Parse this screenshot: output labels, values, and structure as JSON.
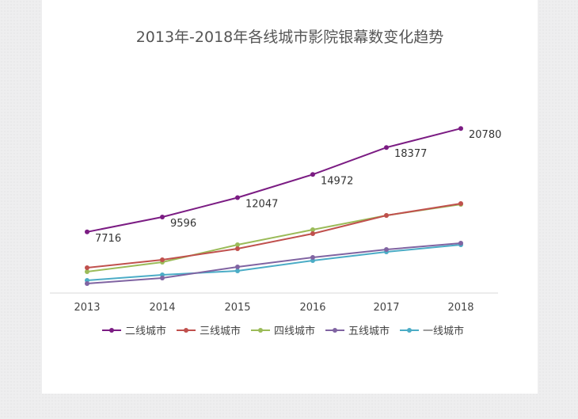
{
  "chart_data": {
    "type": "line",
    "title": "2013年-2018年各线城市影院银幕数变化趋势",
    "categories": [
      "2013",
      "2014",
      "2015",
      "2016",
      "2017",
      "2018"
    ],
    "ylim": [
      0,
      22000
    ],
    "series": [
      {
        "name": "二线城市",
        "color": "#7b1c83",
        "values": [
          7716,
          9596,
          12047,
          14972,
          18377,
          20780
        ],
        "labels": [
          "7716",
          "9596",
          "12047",
          "14972",
          "18377",
          "20780"
        ]
      },
      {
        "name": "三线城市",
        "color": "#c0504d",
        "values": [
          3200,
          4200,
          5600,
          7500,
          9800,
          11300
        ]
      },
      {
        "name": "四线城市",
        "color": "#9bbb59",
        "values": [
          2700,
          3900,
          6100,
          8000,
          9800,
          11200
        ]
      },
      {
        "name": "五线城市",
        "color": "#8064a2",
        "values": [
          1200,
          1900,
          3300,
          4500,
          5500,
          6300
        ]
      },
      {
        "name": "一线城市",
        "color": "#4bacc6",
        "values": [
          1600,
          2300,
          2800,
          4100,
          5200,
          6100
        ]
      }
    ]
  }
}
